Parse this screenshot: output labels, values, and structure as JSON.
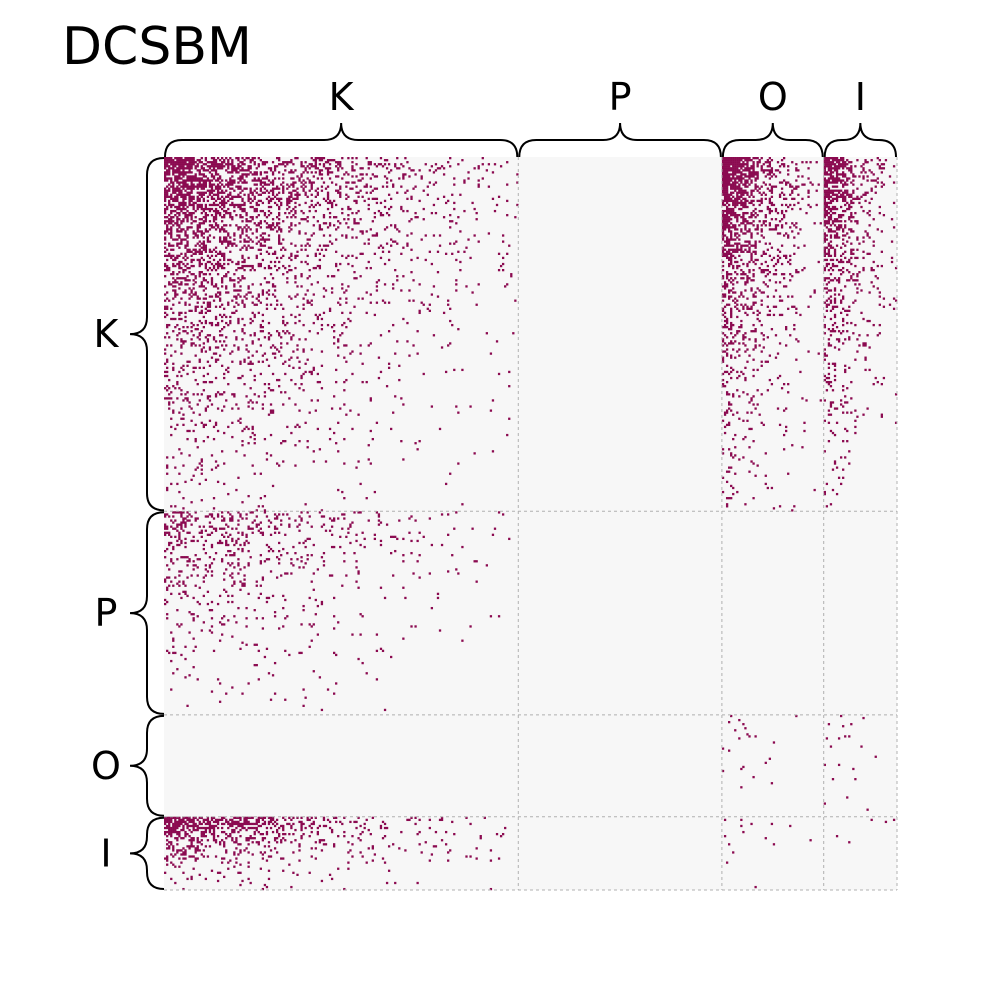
{
  "chart_data": {
    "type": "heatmap",
    "title": "DCSBM",
    "groups": [
      "K",
      "P",
      "O",
      "I"
    ],
    "group_sizes": [
      174,
      100,
      50,
      36
    ],
    "background_color": "#f7f7f7",
    "edge_color": "#8b0a50",
    "divider_color": "#b0b0b0",
    "block_probability": [
      [
        0.55,
        0.0,
        0.75,
        0.65
      ],
      [
        0.22,
        0.0,
        0.0,
        0.0
      ],
      [
        0.0,
        0.0,
        0.05,
        0.06
      ],
      [
        0.58,
        0.0,
        0.05,
        0.03
      ]
    ],
    "grid": true,
    "legend": "none"
  }
}
